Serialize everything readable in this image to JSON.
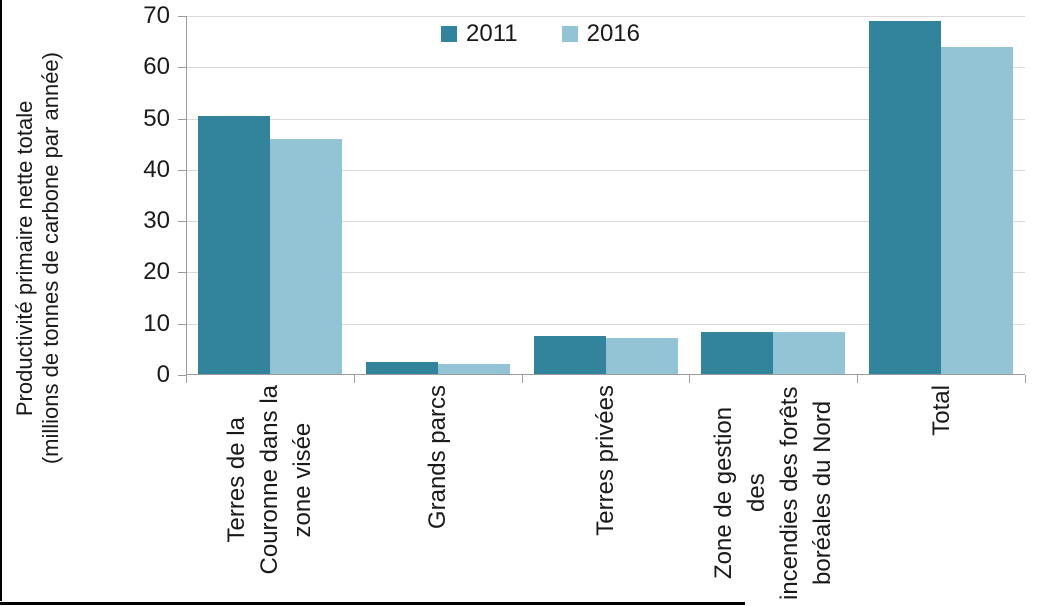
{
  "chart_data": {
    "type": "bar",
    "title": "",
    "ylabel": "Productivité primaire nette totale (millions de tonnes de carbone par année)",
    "ylabel_lines": [
      "Productivité primaire nette totale",
      "(millions de tonnes de carbone par année)"
    ],
    "categories": [
      "Terres de la Couronne dans la zone visée",
      "Grands parcs",
      "Terres privées",
      "Zone de gestion des incendies des forêts boréales du Nord",
      "Total"
    ],
    "category_label_lines": [
      [
        "Terres de la",
        "Couronne dans la",
        "zone visée"
      ],
      [
        "Grands parcs"
      ],
      [
        "Terres privées"
      ],
      [
        "Zone de gestion des",
        "incendies des forêts",
        "boréales du Nord"
      ],
      [
        "Total"
      ]
    ],
    "series": [
      {
        "name": "2011",
        "color": "#31849B",
        "values": [
          50.5,
          2.6,
          7.7,
          8.3,
          69.1
        ]
      },
      {
        "name": "2016",
        "color": "#92C4D5",
        "values": [
          46.0,
          2.2,
          7.3,
          8.3,
          63.9
        ]
      }
    ],
    "ylim": [
      0,
      70
    ],
    "yticks": [
      0,
      10,
      20,
      30,
      40,
      50,
      60,
      70
    ],
    "grid": "horizontal",
    "legend_position": "top-center",
    "x_tick_style": "category boundary ticks, labels rotated 90° reading bottom-to-top",
    "colors": {
      "gridline": "#D9D9D9",
      "axis": "#9B9B9B",
      "text": "#1A1A1A",
      "figure_border": "#000000",
      "background": "#FFFFFF"
    }
  }
}
